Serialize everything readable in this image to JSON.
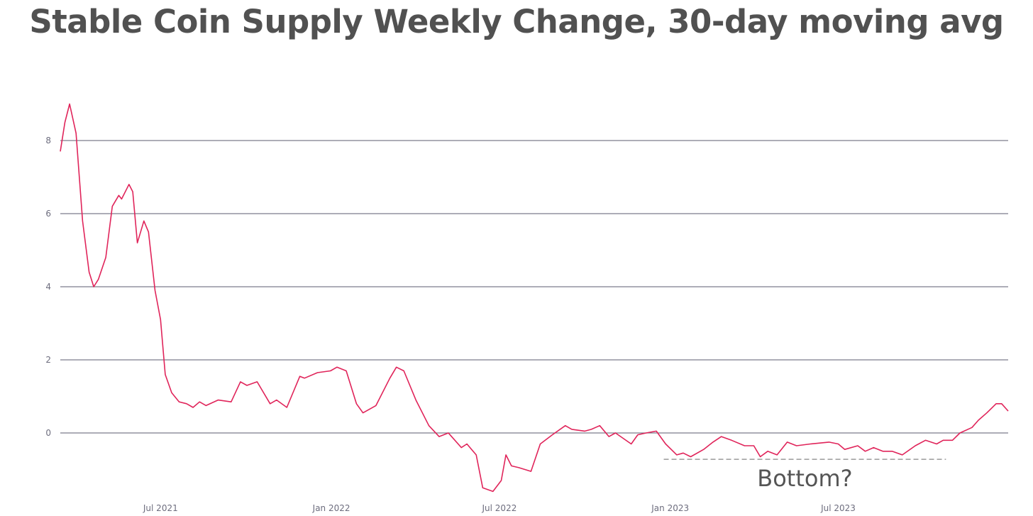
{
  "chart_data": {
    "type": "line",
    "title": "Stable Coin Supply Weekly Change, 30-day moving avg",
    "xlabel": "",
    "ylabel": "",
    "ylim": [
      -1.6,
      9.3
    ],
    "xlim": [
      "2021-03-15",
      "2023-12-31"
    ],
    "grid": true,
    "yticks": [
      0,
      2,
      4,
      6,
      8
    ],
    "xticks": [
      {
        "label": "Jul 2021",
        "date": "2021-07-01"
      },
      {
        "label": "Jan 2022",
        "date": "2022-01-01"
      },
      {
        "label": "Jul 2022",
        "date": "2022-07-01"
      },
      {
        "label": "Jan 2023",
        "date": "2023-01-01"
      },
      {
        "label": "Jul 2023",
        "date": "2023-07-01"
      }
    ],
    "series": [
      {
        "color": "#e0245a",
        "points": [
          [
            "2021-03-15",
            7.7
          ],
          [
            "2021-03-20",
            8.5
          ],
          [
            "2021-03-25",
            9.0
          ],
          [
            "2021-04-01",
            8.2
          ],
          [
            "2021-04-08",
            5.8
          ],
          [
            "2021-04-15",
            4.4
          ],
          [
            "2021-04-20",
            4.0
          ],
          [
            "2021-04-25",
            4.2
          ],
          [
            "2021-05-03",
            4.8
          ],
          [
            "2021-05-10",
            6.2
          ],
          [
            "2021-05-17",
            6.5
          ],
          [
            "2021-05-20",
            6.4
          ],
          [
            "2021-05-28",
            6.8
          ],
          [
            "2021-06-01",
            6.6
          ],
          [
            "2021-06-06",
            5.2
          ],
          [
            "2021-06-13",
            5.8
          ],
          [
            "2021-06-18",
            5.5
          ],
          [
            "2021-06-25",
            3.9
          ],
          [
            "2021-07-01",
            3.1
          ],
          [
            "2021-07-06",
            1.6
          ],
          [
            "2021-07-13",
            1.1
          ],
          [
            "2021-07-21",
            0.85
          ],
          [
            "2021-07-29",
            0.8
          ],
          [
            "2021-08-05",
            0.7
          ],
          [
            "2021-08-12",
            0.85
          ],
          [
            "2021-08-19",
            0.75
          ],
          [
            "2021-09-01",
            0.9
          ],
          [
            "2021-09-15",
            0.85
          ],
          [
            "2021-09-25",
            1.4
          ],
          [
            "2021-10-02",
            1.3
          ],
          [
            "2021-10-13",
            1.4
          ],
          [
            "2021-10-27",
            0.8
          ],
          [
            "2021-11-03",
            0.9
          ],
          [
            "2021-11-14",
            0.7
          ],
          [
            "2021-11-28",
            1.55
          ],
          [
            "2021-12-03",
            1.5
          ],
          [
            "2021-12-17",
            1.65
          ],
          [
            "2021-12-31",
            1.7
          ],
          [
            "2022-01-07",
            1.8
          ],
          [
            "2022-01-17",
            1.7
          ],
          [
            "2022-01-28",
            0.8
          ],
          [
            "2022-02-04",
            0.55
          ],
          [
            "2022-02-18",
            0.75
          ],
          [
            "2022-03-05",
            1.5
          ],
          [
            "2022-03-12",
            1.8
          ],
          [
            "2022-03-20",
            1.7
          ],
          [
            "2022-04-02",
            0.9
          ],
          [
            "2022-04-16",
            0.2
          ],
          [
            "2022-04-27",
            -0.1
          ],
          [
            "2022-05-07",
            0.0
          ],
          [
            "2022-05-21",
            -0.4
          ],
          [
            "2022-05-27",
            -0.3
          ],
          [
            "2022-06-06",
            -0.6
          ],
          [
            "2022-06-13",
            -1.5
          ],
          [
            "2022-06-24",
            -1.6
          ],
          [
            "2022-07-03",
            -1.3
          ],
          [
            "2022-07-08",
            -0.6
          ],
          [
            "2022-07-14",
            -0.9
          ],
          [
            "2022-07-22",
            -0.95
          ],
          [
            "2022-08-04",
            -1.05
          ],
          [
            "2022-08-14",
            -0.3
          ],
          [
            "2022-08-27",
            -0.05
          ],
          [
            "2022-09-10",
            0.2
          ],
          [
            "2022-09-17",
            0.1
          ],
          [
            "2022-10-01",
            0.05
          ],
          [
            "2022-10-08",
            0.1
          ],
          [
            "2022-10-17",
            0.2
          ],
          [
            "2022-10-27",
            -0.1
          ],
          [
            "2022-11-03",
            0.0
          ],
          [
            "2022-11-20",
            -0.3
          ],
          [
            "2022-11-27",
            -0.05
          ],
          [
            "2022-12-06",
            0.0
          ],
          [
            "2022-12-17",
            0.05
          ],
          [
            "2022-12-27",
            -0.3
          ],
          [
            "2023-01-08",
            -0.6
          ],
          [
            "2023-01-15",
            -0.55
          ],
          [
            "2023-01-23",
            -0.65
          ],
          [
            "2023-02-06",
            -0.45
          ],
          [
            "2023-02-16",
            -0.25
          ],
          [
            "2023-02-25",
            -0.1
          ],
          [
            "2023-03-08",
            -0.2
          ],
          [
            "2023-03-22",
            -0.35
          ],
          [
            "2023-04-01",
            -0.35
          ],
          [
            "2023-04-08",
            -0.65
          ],
          [
            "2023-04-16",
            -0.5
          ],
          [
            "2023-04-26",
            -0.6
          ],
          [
            "2023-05-07",
            -0.25
          ],
          [
            "2023-05-17",
            -0.35
          ],
          [
            "2023-06-01",
            -0.3
          ],
          [
            "2023-06-21",
            -0.25
          ],
          [
            "2023-07-01",
            -0.3
          ],
          [
            "2023-07-08",
            -0.45
          ],
          [
            "2023-07-22",
            -0.35
          ],
          [
            "2023-07-30",
            -0.5
          ],
          [
            "2023-08-08",
            -0.4
          ],
          [
            "2023-08-18",
            -0.5
          ],
          [
            "2023-08-28",
            -0.5
          ],
          [
            "2023-09-08",
            -0.6
          ],
          [
            "2023-09-22",
            -0.35
          ],
          [
            "2023-10-03",
            -0.2
          ],
          [
            "2023-10-15",
            -0.3
          ],
          [
            "2023-10-22",
            -0.2
          ],
          [
            "2023-11-01",
            -0.2
          ],
          [
            "2023-11-09",
            0.0
          ],
          [
            "2023-11-22",
            0.15
          ],
          [
            "2023-11-29",
            0.35
          ],
          [
            "2023-12-08",
            0.55
          ],
          [
            "2023-12-18",
            0.8
          ],
          [
            "2023-12-24",
            0.8
          ],
          [
            "2023-12-31",
            0.6
          ]
        ]
      }
    ],
    "annotations": [
      {
        "text": "Bottom?",
        "y": -0.72,
        "x_start": "2022-12-25",
        "x_end": "2023-10-25",
        "style": "dashed"
      }
    ]
  }
}
